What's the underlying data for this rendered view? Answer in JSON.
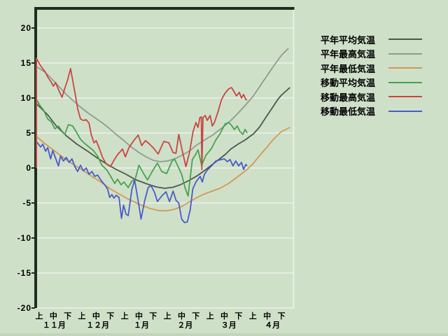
{
  "colors": {
    "background": "#cfe0c9",
    "grid": "#eef3ea",
    "axis": "#1f2d1f",
    "text": "#000000",
    "bottom_edge": "#c2d5ba"
  },
  "chart_data": {
    "type": "line",
    "title": "",
    "xlabel": "",
    "ylabel": "",
    "grid": true,
    "legend_position": "right",
    "y_axis": {
      "ticks": [
        20,
        15,
        10,
        5,
        0,
        -5,
        -10,
        -15,
        -20
      ],
      "range": [
        -20,
        22.8
      ]
    },
    "x_axis": {
      "months": [
        "１１月",
        "１２月",
        "１月",
        "２月",
        "３月",
        "４月"
      ],
      "decade_labels": [
        "上",
        "中",
        "下"
      ],
      "unit_note": "x index 0 = 11月上旬, 17 = 4月下旬"
    },
    "series": [
      {
        "id": "normal-avg",
        "name": "平年平均気温",
        "color": "#4b584b",
        "points": [
          [
            -0.2,
            9.2
          ],
          [
            0.6,
            7.6
          ],
          [
            1.2,
            6.0
          ],
          [
            1.9,
            4.6
          ],
          [
            2.65,
            3.4
          ],
          [
            3.4,
            2.4
          ],
          [
            4.1,
            1.4
          ],
          [
            4.8,
            0.5
          ],
          [
            5.4,
            -0.2
          ],
          [
            6.1,
            -0.9
          ],
          [
            6.8,
            -1.7
          ],
          [
            7.6,
            -2.3
          ],
          [
            8.2,
            -2.7
          ],
          [
            8.8,
            -2.9
          ],
          [
            9.4,
            -2.75
          ],
          [
            9.9,
            -2.4
          ],
          [
            10.5,
            -1.8
          ],
          [
            11.1,
            -1.1
          ],
          [
            11.65,
            -0.3
          ],
          [
            12.15,
            0.5
          ],
          [
            12.6,
            1.2
          ],
          [
            13.1,
            2.0
          ],
          [
            13.45,
            2.7
          ],
          [
            13.95,
            3.4
          ],
          [
            14.45,
            4.0
          ],
          [
            15.05,
            4.9
          ],
          [
            15.45,
            5.8
          ],
          [
            16.0,
            7.5
          ],
          [
            16.4,
            8.7
          ],
          [
            16.75,
            9.8
          ],
          [
            17.0,
            10.4
          ],
          [
            17.6,
            11.5
          ]
        ]
      },
      {
        "id": "normal-max",
        "name": "平年最高気温",
        "color": "#8f9b8f",
        "points": [
          [
            -0.2,
            14.5
          ],
          [
            0.4,
            13.7
          ],
          [
            0.9,
            12.7
          ],
          [
            1.4,
            11.6
          ],
          [
            1.9,
            10.5
          ],
          [
            2.4,
            9.6
          ],
          [
            2.9,
            8.7
          ],
          [
            3.4,
            7.9
          ],
          [
            3.9,
            7.2
          ],
          [
            4.4,
            6.5
          ],
          [
            4.9,
            5.7
          ],
          [
            5.4,
            4.8
          ],
          [
            5.9,
            4.0
          ],
          [
            6.4,
            3.1
          ],
          [
            7.0,
            2.2
          ],
          [
            7.5,
            1.6
          ],
          [
            8.0,
            1.1
          ],
          [
            8.5,
            0.9
          ],
          [
            9.0,
            1.0
          ],
          [
            9.5,
            1.3
          ],
          [
            10.0,
            1.8
          ],
          [
            10.6,
            2.5
          ],
          [
            11.0,
            3.2
          ],
          [
            11.6,
            4.0
          ],
          [
            12.1,
            4.6
          ],
          [
            12.5,
            5.2
          ],
          [
            13.0,
            6.0
          ],
          [
            13.3,
            6.5
          ],
          [
            13.9,
            7.7
          ],
          [
            14.4,
            8.8
          ],
          [
            15.0,
            10.2
          ],
          [
            15.4,
            11.4
          ],
          [
            16.0,
            13.2
          ],
          [
            16.4,
            14.4
          ],
          [
            17.0,
            16.1
          ],
          [
            17.5,
            17.1
          ]
        ]
      },
      {
        "id": "normal-min",
        "name": "平年最低気温",
        "color": "#d09a55",
        "points": [
          [
            -0.2,
            4.5
          ],
          [
            0.45,
            3.4
          ],
          [
            1.1,
            2.4
          ],
          [
            1.75,
            1.4
          ],
          [
            2.4,
            0.5
          ],
          [
            3.05,
            -0.3
          ],
          [
            3.7,
            -1.2
          ],
          [
            4.4,
            -2.1
          ],
          [
            5.0,
            -3.0
          ],
          [
            5.6,
            -3.7
          ],
          [
            6.3,
            -4.5
          ],
          [
            7.05,
            -5.2
          ],
          [
            7.8,
            -5.8
          ],
          [
            8.45,
            -6.1
          ],
          [
            9.0,
            -6.1
          ],
          [
            9.5,
            -5.9
          ],
          [
            10.0,
            -5.5
          ],
          [
            10.5,
            -4.9
          ],
          [
            11.0,
            -4.3
          ],
          [
            11.5,
            -3.8
          ],
          [
            12.0,
            -3.4
          ],
          [
            12.7,
            -2.9
          ],
          [
            13.3,
            -2.2
          ],
          [
            13.7,
            -1.6
          ],
          [
            14.1,
            -1.0
          ],
          [
            14.6,
            -0.2
          ],
          [
            15.0,
            0.6
          ],
          [
            15.4,
            1.6
          ],
          [
            16.0,
            3.0
          ],
          [
            16.4,
            4.0
          ],
          [
            17.0,
            5.2
          ],
          [
            17.6,
            5.8
          ]
        ]
      },
      {
        "id": "moving-avg",
        "name": "移動平均気温",
        "color": "#46a24e",
        "points": [
          [
            -0.2,
            0
          ],
          [
            -0.2,
            9.8
          ],
          [
            0.1,
            8.8
          ],
          [
            0.3,
            8.3
          ],
          [
            0.6,
            7.0
          ],
          [
            0.85,
            6.6
          ],
          [
            1.1,
            5.6
          ],
          [
            1.35,
            6.0
          ],
          [
            1.55,
            5.4
          ],
          [
            1.8,
            4.8
          ],
          [
            2.05,
            6.2
          ],
          [
            2.35,
            6.0
          ],
          [
            2.65,
            5.0
          ],
          [
            2.9,
            4.1
          ],
          [
            3.2,
            3.5
          ],
          [
            3.5,
            3.0
          ],
          [
            3.8,
            2.5
          ],
          [
            4.1,
            1.7
          ],
          [
            4.4,
            0.4
          ],
          [
            4.75,
            -0.3
          ],
          [
            5.05,
            -1.3
          ],
          [
            5.3,
            -2.2
          ],
          [
            5.5,
            -1.6
          ],
          [
            5.75,
            -2.4
          ],
          [
            5.95,
            -2.0
          ],
          [
            6.25,
            -2.8
          ],
          [
            6.5,
            -1.9
          ],
          [
            6.75,
            -1.5
          ],
          [
            7.0,
            0.4
          ],
          [
            7.3,
            -0.7
          ],
          [
            7.6,
            -1.7
          ],
          [
            7.9,
            -0.6
          ],
          [
            8.3,
            0.7
          ],
          [
            8.6,
            -0.5
          ],
          [
            8.95,
            -0.8
          ],
          [
            9.3,
            0.9
          ],
          [
            9.5,
            1.3
          ],
          [
            9.75,
            0.2
          ],
          [
            10.0,
            -0.9
          ],
          [
            10.25,
            -2.9
          ],
          [
            10.45,
            -4.0
          ],
          [
            10.75,
            1.2
          ],
          [
            11.0,
            2.0
          ],
          [
            11.15,
            2.6
          ],
          [
            11.4,
            0.4
          ],
          [
            11.7,
            1.8
          ],
          [
            12.1,
            2.8
          ],
          [
            12.4,
            4.0
          ],
          [
            12.7,
            4.9
          ],
          [
            13.05,
            6.3
          ],
          [
            13.3,
            6.5
          ],
          [
            13.5,
            6.1
          ],
          [
            13.7,
            5.5
          ],
          [
            13.9,
            6.0
          ],
          [
            14.1,
            5.2
          ],
          [
            14.3,
            4.8
          ],
          [
            14.45,
            5.5
          ],
          [
            14.6,
            5.0
          ]
        ]
      },
      {
        "id": "moving-max",
        "name": "移動最高気温",
        "color": "#c84540",
        "points": [
          [
            -0.2,
            0
          ],
          [
            -0.2,
            15.7
          ],
          [
            0.1,
            14.6
          ],
          [
            0.4,
            13.8
          ],
          [
            0.6,
            13.0
          ],
          [
            0.8,
            12.4
          ],
          [
            1.0,
            11.7
          ],
          [
            1.15,
            12.2
          ],
          [
            1.35,
            11.2
          ],
          [
            1.6,
            10.1
          ],
          [
            1.8,
            11.4
          ],
          [
            2.0,
            12.6
          ],
          [
            2.2,
            14.2
          ],
          [
            2.4,
            12.0
          ],
          [
            2.55,
            10.3
          ],
          [
            2.7,
            8.5
          ],
          [
            2.9,
            7.0
          ],
          [
            3.1,
            6.8
          ],
          [
            3.3,
            6.9
          ],
          [
            3.5,
            6.4
          ],
          [
            3.65,
            4.8
          ],
          [
            3.85,
            3.6
          ],
          [
            4.0,
            3.9
          ],
          [
            4.2,
            2.9
          ],
          [
            4.45,
            1.5
          ],
          [
            4.7,
            0.6
          ],
          [
            5.0,
            0.2
          ],
          [
            5.25,
            1.1
          ],
          [
            5.5,
            1.9
          ],
          [
            5.85,
            2.7
          ],
          [
            6.05,
            1.6
          ],
          [
            6.3,
            2.9
          ],
          [
            6.6,
            3.8
          ],
          [
            6.95,
            4.7
          ],
          [
            7.2,
            3.2
          ],
          [
            7.45,
            3.9
          ],
          [
            7.7,
            3.5
          ],
          [
            8.0,
            2.9
          ],
          [
            8.35,
            2.0
          ],
          [
            8.75,
            3.8
          ],
          [
            9.1,
            3.6
          ],
          [
            9.4,
            2.2
          ],
          [
            9.6,
            2.1
          ],
          [
            9.8,
            4.8
          ],
          [
            10.05,
            2.4
          ],
          [
            10.3,
            0.2
          ],
          [
            10.55,
            2.2
          ],
          [
            10.8,
            5.2
          ],
          [
            11.0,
            6.5
          ],
          [
            11.15,
            5.8
          ],
          [
            11.28,
            7.2
          ],
          [
            11.38,
            7.3
          ],
          [
            11.42,
            -0.2
          ],
          [
            11.5,
            7.2
          ],
          [
            11.65,
            7.5
          ],
          [
            11.8,
            6.8
          ],
          [
            12.0,
            7.5
          ],
          [
            12.15,
            6.0
          ],
          [
            12.3,
            6.5
          ],
          [
            12.55,
            8.0
          ],
          [
            12.8,
            9.8
          ],
          [
            13.05,
            10.7
          ],
          [
            13.3,
            11.3
          ],
          [
            13.5,
            11.5
          ],
          [
            13.65,
            11.0
          ],
          [
            13.85,
            10.3
          ],
          [
            14.05,
            10.8
          ],
          [
            14.2,
            10.0
          ],
          [
            14.35,
            10.5
          ],
          [
            14.5,
            9.8
          ],
          [
            14.6,
            9.7
          ]
        ]
      },
      {
        "id": "moving-min",
        "name": "移動最低気温",
        "color": "#4a5ac8",
        "points": [
          [
            -0.2,
            0
          ],
          [
            -0.2,
            3.8
          ],
          [
            0.1,
            3.0
          ],
          [
            0.25,
            3.4
          ],
          [
            0.45,
            2.4
          ],
          [
            0.6,
            2.9
          ],
          [
            0.8,
            1.3
          ],
          [
            0.95,
            2.5
          ],
          [
            1.15,
            1.4
          ],
          [
            1.35,
            0.3
          ],
          [
            1.5,
            1.7
          ],
          [
            1.7,
            1.0
          ],
          [
            1.9,
            1.5
          ],
          [
            2.1,
            0.8
          ],
          [
            2.3,
            1.3
          ],
          [
            2.5,
            0.2
          ],
          [
            2.7,
            -0.5
          ],
          [
            2.9,
            0.4
          ],
          [
            3.1,
            -0.4
          ],
          [
            3.3,
            0.0
          ],
          [
            3.5,
            -0.9
          ],
          [
            3.7,
            -0.5
          ],
          [
            3.9,
            -1.2
          ],
          [
            4.1,
            -1.0
          ],
          [
            4.35,
            -1.8
          ],
          [
            4.6,
            -2.4
          ],
          [
            4.8,
            -3.0
          ],
          [
            4.95,
            -4.2
          ],
          [
            5.1,
            -3.8
          ],
          [
            5.25,
            -4.3
          ],
          [
            5.4,
            -3.9
          ],
          [
            5.6,
            -4.2
          ],
          [
            5.78,
            -7.2
          ],
          [
            5.92,
            -5.3
          ],
          [
            6.1,
            -6.6
          ],
          [
            6.25,
            -6.8
          ],
          [
            6.5,
            -3.1
          ],
          [
            6.7,
            -1.7
          ],
          [
            6.95,
            -4.7
          ],
          [
            7.15,
            -7.3
          ],
          [
            7.4,
            -4.7
          ],
          [
            7.65,
            -2.8
          ],
          [
            7.85,
            -2.5
          ],
          [
            8.1,
            -3.5
          ],
          [
            8.3,
            -4.8
          ],
          [
            8.6,
            -4.0
          ],
          [
            8.9,
            -3.4
          ],
          [
            9.15,
            -4.8
          ],
          [
            9.4,
            -3.3
          ],
          [
            9.6,
            -4.6
          ],
          [
            9.8,
            -5.0
          ],
          [
            10.0,
            -7.3
          ],
          [
            10.2,
            -7.8
          ],
          [
            10.4,
            -7.7
          ],
          [
            10.6,
            -6.0
          ],
          [
            10.78,
            -3.0
          ],
          [
            11.0,
            -2.0
          ],
          [
            11.3,
            -1.2
          ],
          [
            11.45,
            -2.0
          ],
          [
            11.6,
            -0.9
          ],
          [
            11.8,
            -0.3
          ],
          [
            12.1,
            0.3
          ],
          [
            12.4,
            1.0
          ],
          [
            12.75,
            1.2
          ],
          [
            13.0,
            1.3
          ],
          [
            13.2,
            0.9
          ],
          [
            13.4,
            1.2
          ],
          [
            13.6,
            0.3
          ],
          [
            13.8,
            1.0
          ],
          [
            14.0,
            0.3
          ],
          [
            14.2,
            0.8
          ],
          [
            14.35,
            -0.2
          ],
          [
            14.5,
            0.5
          ],
          [
            14.6,
            0.3
          ]
        ]
      }
    ]
  }
}
